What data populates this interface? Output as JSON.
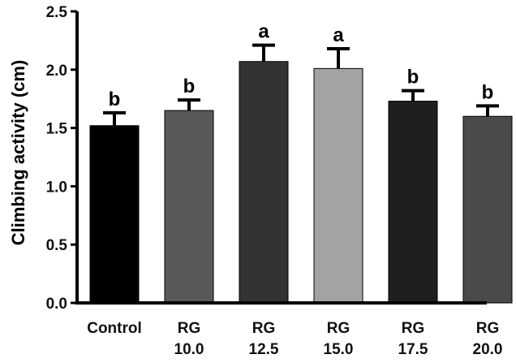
{
  "chart_data": {
    "type": "bar",
    "title": "",
    "xlabel": "",
    "ylabel": "Climbing activity (cm)",
    "ylim": [
      0,
      2.5
    ],
    "yticks": [
      "0.0",
      "0.5",
      "1.0",
      "1.5",
      "2.0",
      "2.5"
    ],
    "grid": false,
    "categories": [
      [
        "Control"
      ],
      [
        "RG",
        "10.0"
      ],
      [
        "RG",
        "12.5"
      ],
      [
        "RG",
        "15.0"
      ],
      [
        "RG",
        "17.5"
      ],
      [
        "RG",
        "20.0"
      ]
    ],
    "values": [
      1.52,
      1.65,
      2.07,
      2.01,
      1.73,
      1.6
    ],
    "errors": [
      0.11,
      0.09,
      0.14,
      0.17,
      0.09,
      0.09
    ],
    "significance": [
      "b",
      "b",
      "a",
      "a",
      "b",
      "b"
    ],
    "colors": [
      "#000000",
      "#595959",
      "#333333",
      "#a3a3a3",
      "#1f1f1f",
      "#4a4a4a"
    ]
  }
}
